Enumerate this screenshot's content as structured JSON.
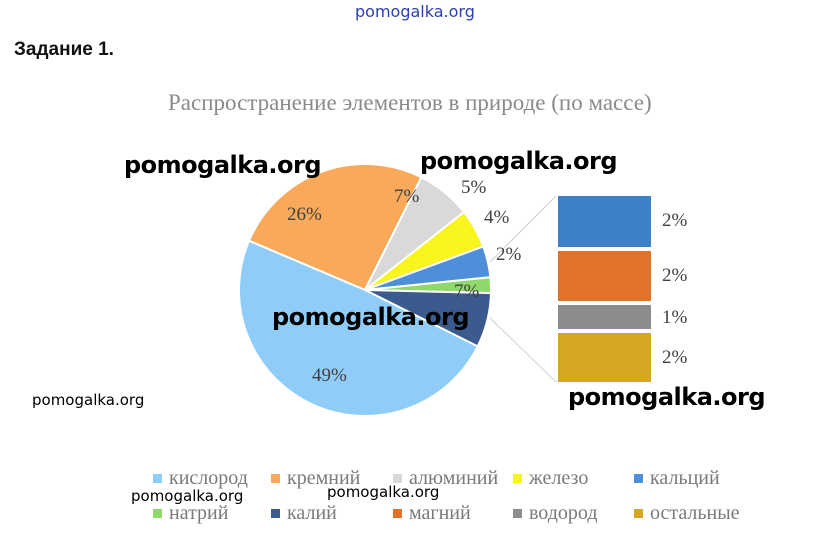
{
  "header": {
    "watermark_top": "pomogalka.org",
    "task": "Задание 1."
  },
  "watermarks": {
    "w1": "pomogalka.org",
    "w2": "pomogalka.org",
    "w3": "pomogalka.org",
    "w4": "pomogalka.org",
    "w5": "pomogalka.org",
    "w6": "pomogalka.org",
    "w7": "pomogalka.org"
  },
  "chart_data": {
    "type": "pie",
    "title": "Распространение элементов в природе (по массе)",
    "legend_position": "bottom",
    "slices": [
      {
        "name": "кислород",
        "value": 49,
        "label": "49%",
        "color": "#8fcdf8"
      },
      {
        "name": "кремний",
        "value": 26,
        "label": "26%",
        "color": "#f8aa5a"
      },
      {
        "name": "алюминий",
        "value": 7,
        "label": "7%",
        "color": "#d9d9d9"
      },
      {
        "name": "железо",
        "value": 5,
        "label": "5%",
        "color": "#f8f41e"
      },
      {
        "name": "кальций",
        "value": 4,
        "label": "4%",
        "color": "#4f8fd9"
      },
      {
        "name": "натрий",
        "value": 2,
        "label": "2%",
        "color": "#8fd96a"
      },
      {
        "name": "калий",
        "value": 7,
        "label": "7%",
        "color": "#3b5b8e"
      }
    ],
    "bar_of_pie": {
      "source_slice": "калий",
      "items": [
        {
          "name": "магний",
          "value": 2,
          "label": "2%",
          "color": "#e07328"
        },
        {
          "name": "водород",
          "value": 1,
          "label": "1%",
          "color": "#8c8c8c"
        },
        {
          "name": "остальные",
          "value": 2,
          "label": "2%",
          "color": "#d4a822"
        }
      ],
      "top_item": {
        "name": "кальций",
        "value": 2,
        "label": "2%",
        "color": "#3d82c8"
      }
    },
    "legend": [
      {
        "name": "кислород",
        "color": "#8fcdf8"
      },
      {
        "name": "кремний",
        "color": "#f8aa5a"
      },
      {
        "name": "алюминий",
        "color": "#d9d9d9"
      },
      {
        "name": "железо",
        "color": "#f8f41e"
      },
      {
        "name": "кальций",
        "color": "#4f8fd9"
      },
      {
        "name": "натрий",
        "color": "#8fd96a"
      },
      {
        "name": "калий",
        "color": "#3b5b8e"
      },
      {
        "name": "магний",
        "color": "#e07328"
      },
      {
        "name": "водород",
        "color": "#8c8c8c"
      },
      {
        "name": "остальные",
        "color": "#d4a822"
      }
    ]
  }
}
